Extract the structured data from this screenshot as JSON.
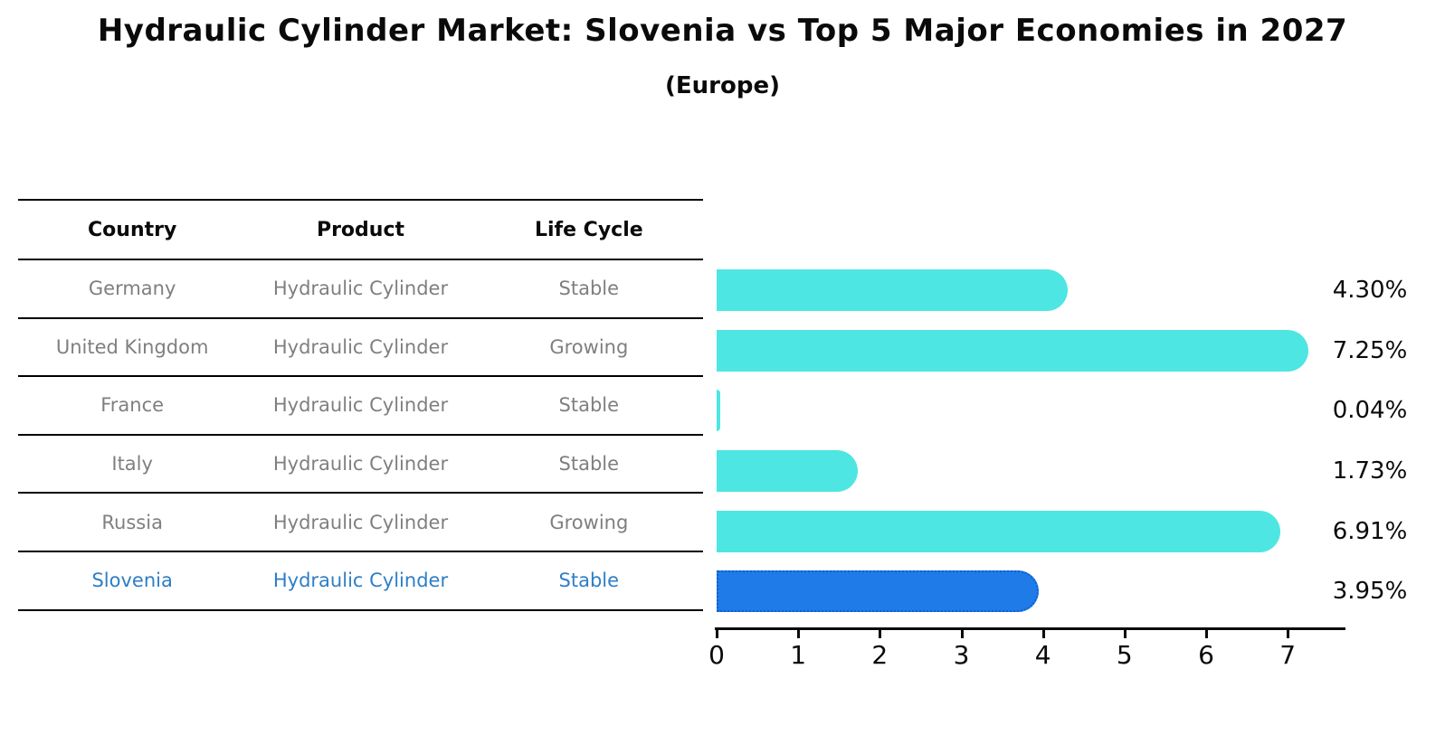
{
  "title": "Hydraulic Cylinder Market: Slovenia vs Top 5 Major Economies in 2027",
  "subtitle": "(Europe)",
  "table": {
    "headers": [
      "Country",
      "Product",
      "Life Cycle"
    ],
    "rows": [
      {
        "country": "Germany",
        "product": "Hydraulic Cylinder",
        "life_cycle": "Stable",
        "highlight": false
      },
      {
        "country": "United Kingdom",
        "product": "Hydraulic Cylinder",
        "life_cycle": "Growing",
        "highlight": false
      },
      {
        "country": "France",
        "product": "Hydraulic Cylinder",
        "life_cycle": "Stable",
        "highlight": false
      },
      {
        "country": "Italy",
        "product": "Hydraulic Cylinder",
        "life_cycle": "Stable",
        "highlight": false
      },
      {
        "country": "Russia",
        "product": "Hydraulic Cylinder",
        "life_cycle": "Growing",
        "highlight": false
      },
      {
        "country": "Slovenia",
        "product": "Hydraulic Cylinder",
        "life_cycle": "Stable",
        "highlight": true
      }
    ]
  },
  "chart_data": {
    "type": "bar",
    "orientation": "horizontal",
    "title": "Hydraulic Cylinder Market: Slovenia vs Top 5 Major Economies in 2027",
    "subtitle": "(Europe)",
    "categories": [
      "Germany",
      "United Kingdom",
      "France",
      "Italy",
      "Russia",
      "Slovenia"
    ],
    "values": [
      4.3,
      7.25,
      0.04,
      1.73,
      6.91,
      3.95
    ],
    "value_labels": [
      "4.30%",
      "7.25%",
      "0.04%",
      "1.73%",
      "6.91%",
      "3.95%"
    ],
    "x_ticks": [
      "0",
      "1",
      "2",
      "3",
      "4",
      "5",
      "6",
      "7"
    ],
    "xlim": [
      0,
      7.73
    ],
    "grid": false,
    "legend": false,
    "highlight_index": 5,
    "colors": {
      "bar": "#4DE6E2",
      "highlight_bar": "#1E7BE8",
      "highlight_border": "#0E5FD1",
      "row_text": "#7f7f7f",
      "highlight_text": "#2E7EC6",
      "axis": "#0a0a0a"
    }
  }
}
